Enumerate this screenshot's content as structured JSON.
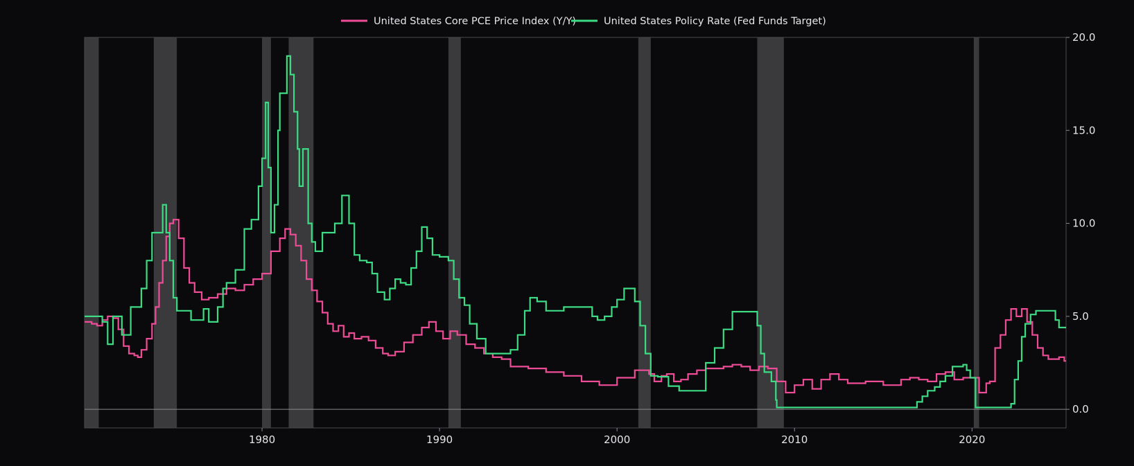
{
  "chart_data": {
    "type": "line",
    "title": "",
    "xlabel": "",
    "ylabel": "",
    "xlim": [
      1970.0,
      2025.3
    ],
    "ylim": [
      -1.0,
      20.0
    ],
    "x_ticks": [
      1980,
      1990,
      2000,
      2010,
      2020
    ],
    "x_tick_labels": [
      "1980",
      "1990",
      "2000",
      "2010",
      "2020"
    ],
    "y_ticks": [
      0,
      5,
      10,
      15,
      20
    ],
    "y_tick_labels": [
      "0.0",
      "5.0",
      "10.0",
      "15.0",
      "20.0"
    ],
    "grid": false,
    "legend_position": "top-center",
    "background_color": "#0a0a0c",
    "recession_color": "#3a3a3d",
    "recessions": [
      [
        1970.0,
        1970.8
      ],
      [
        1973.9,
        1975.2
      ],
      [
        1980.0,
        1980.5
      ],
      [
        1981.5,
        1982.9
      ],
      [
        1990.5,
        1991.2
      ],
      [
        2001.2,
        2001.9
      ],
      [
        2007.9,
        2009.4
      ],
      [
        2020.1,
        2020.4
      ]
    ],
    "series": [
      {
        "name": "United States Core PCE Price Index (Y/Y)",
        "color": "#ee4c97",
        "x": [
          1970.0,
          1970.4,
          1970.7,
          1971.0,
          1971.3,
          1971.6,
          1971.9,
          1972.2,
          1972.5,
          1972.8,
          1973.0,
          1973.2,
          1973.5,
          1973.8,
          1974.0,
          1974.2,
          1974.4,
          1974.6,
          1974.8,
          1975.0,
          1975.3,
          1975.6,
          1975.9,
          1976.2,
          1976.6,
          1977.0,
          1977.5,
          1978.0,
          1978.5,
          1979.0,
          1979.5,
          1980.0,
          1980.5,
          1981.0,
          1981.3,
          1981.6,
          1981.9,
          1982.2,
          1982.5,
          1982.8,
          1983.1,
          1983.4,
          1983.7,
          1984.0,
          1984.3,
          1984.6,
          1984.9,
          1985.2,
          1985.6,
          1986.0,
          1986.4,
          1986.8,
          1987.1,
          1987.5,
          1988.0,
          1988.5,
          1989.0,
          1989.4,
          1989.8,
          1990.2,
          1990.6,
          1991.0,
          1991.5,
          1992.0,
          1992.5,
          1993.0,
          1993.5,
          1994.0,
          1995.0,
          1996.0,
          1997.0,
          1998.0,
          1999.0,
          2000.0,
          2001.0,
          2001.8,
          2002.1,
          2002.5,
          2002.8,
          2003.2,
          2003.6,
          2004.0,
          2004.5,
          2005.0,
          2005.5,
          2006.0,
          2006.5,
          2007.0,
          2007.5,
          2008.0,
          2008.5,
          2009.0,
          2009.5,
          2010.0,
          2010.5,
          2011.0,
          2011.5,
          2012.0,
          2012.5,
          2013.0,
          2013.5,
          2014.0,
          2014.5,
          2015.0,
          2015.5,
          2016.0,
          2016.5,
          2017.0,
          2017.5,
          2018.0,
          2018.5,
          2019.0,
          2019.5,
          2020.0,
          2020.4,
          2020.8,
          2021.0,
          2021.3,
          2021.6,
          2021.9,
          2022.2,
          2022.5,
          2022.8,
          2023.1,
          2023.4,
          2023.7,
          2024.0,
          2024.3,
          2024.6,
          2024.9,
          2025.2
        ],
        "y": [
          4.7,
          4.6,
          4.5,
          4.8,
          5.0,
          4.9,
          4.3,
          3.4,
          3.0,
          2.9,
          2.8,
          3.2,
          3.8,
          4.6,
          5.5,
          6.8,
          8.0,
          9.3,
          10.0,
          10.2,
          9.2,
          7.6,
          6.8,
          6.3,
          5.9,
          6.0,
          6.2,
          6.5,
          6.4,
          6.7,
          7.0,
          7.3,
          8.5,
          9.2,
          9.7,
          9.4,
          8.8,
          8.0,
          7.0,
          6.4,
          5.8,
          5.2,
          4.6,
          4.2,
          4.5,
          3.9,
          4.1,
          3.8,
          3.9,
          3.7,
          3.3,
          3.0,
          2.9,
          3.1,
          3.6,
          4.0,
          4.4,
          4.7,
          4.2,
          3.8,
          4.2,
          4.0,
          3.5,
          3.3,
          3.0,
          2.8,
          2.7,
          2.3,
          2.2,
          2.0,
          1.8,
          1.5,
          1.3,
          1.7,
          2.1,
          1.9,
          1.5,
          1.8,
          1.9,
          1.5,
          1.6,
          1.9,
          2.1,
          2.2,
          2.2,
          2.3,
          2.4,
          2.3,
          2.1,
          2.3,
          2.2,
          1.5,
          0.9,
          1.3,
          1.6,
          1.1,
          1.6,
          1.9,
          1.6,
          1.4,
          1.4,
          1.5,
          1.5,
          1.3,
          1.3,
          1.6,
          1.7,
          1.6,
          1.5,
          1.9,
          2.0,
          1.6,
          1.7,
          1.7,
          0.9,
          1.4,
          1.5,
          3.3,
          4.0,
          4.8,
          5.4,
          5.0,
          5.4,
          4.7,
          4.0,
          3.3,
          2.9,
          2.7,
          2.7,
          2.8,
          2.6
        ]
      },
      {
        "name": "United States Policy Rate (Fed Funds Target)",
        "color": "#3ddc84",
        "x": [
          1970.0,
          1971.0,
          1971.3,
          1971.6,
          1972.1,
          1972.6,
          1972.9,
          1973.2,
          1973.5,
          1973.8,
          1974.0,
          1974.4,
          1974.6,
          1974.8,
          1975.0,
          1975.2,
          1975.5,
          1976.0,
          1976.7,
          1977.0,
          1977.5,
          1977.8,
          1978.0,
          1978.5,
          1979.0,
          1979.4,
          1979.8,
          1980.0,
          1980.2,
          1980.35,
          1980.5,
          1980.7,
          1980.9,
          1981.0,
          1981.2,
          1981.4,
          1981.6,
          1981.8,
          1982.0,
          1982.1,
          1982.3,
          1982.6,
          1982.8,
          1983.0,
          1983.4,
          1983.8,
          1984.1,
          1984.5,
          1984.9,
          1985.2,
          1985.5,
          1985.9,
          1986.2,
          1986.5,
          1986.9,
          1987.2,
          1987.5,
          1987.8,
          1988.1,
          1988.4,
          1988.7,
          1989.0,
          1989.3,
          1989.6,
          1990.0,
          1990.5,
          1990.8,
          1991.1,
          1991.4,
          1991.7,
          1992.1,
          1992.6,
          1993.0,
          1994.0,
          1994.4,
          1994.8,
          1995.1,
          1995.5,
          1996.0,
          1997.0,
          1998.0,
          1998.6,
          1998.9,
          1999.3,
          1999.7,
          2000.0,
          2000.4,
          2000.8,
          2001.0,
          2001.3,
          2001.6,
          2001.9,
          2002.3,
          2002.9,
          2003.5,
          2004.5,
          2005.0,
          2005.5,
          2006.0,
          2006.5,
          2007.6,
          2007.9,
          2008.1,
          2008.3,
          2008.7,
          2008.95,
          2009.0,
          2012.0,
          2015.9,
          2016.9,
          2017.2,
          2017.5,
          2017.9,
          2018.2,
          2018.5,
          2018.9,
          2019.5,
          2019.7,
          2019.9,
          2020.2,
          2021.0,
          2022.0,
          2022.2,
          2022.4,
          2022.6,
          2022.8,
          2023.0,
          2023.3,
          2023.6,
          2024.5,
          2024.7,
          2024.9,
          2025.3
        ],
        "y": [
          5.0,
          4.7,
          3.5,
          5.0,
          4.0,
          5.5,
          5.5,
          6.5,
          8.0,
          9.5,
          9.5,
          11.0,
          9.5,
          8.0,
          6.0,
          5.3,
          5.3,
          4.8,
          5.4,
          4.7,
          5.5,
          6.5,
          6.8,
          7.5,
          9.7,
          10.2,
          12.0,
          13.5,
          16.5,
          13.0,
          9.5,
          11.0,
          15.0,
          17.0,
          17.0,
          19.0,
          18.0,
          16.0,
          14.0,
          12.0,
          14.0,
          10.0,
          9.0,
          8.5,
          9.5,
          9.5,
          10.0,
          11.5,
          10.0,
          8.3,
          8.0,
          7.9,
          7.3,
          6.3,
          5.9,
          6.5,
          7.0,
          6.8,
          6.7,
          7.6,
          8.5,
          9.8,
          9.2,
          8.3,
          8.2,
          8.0,
          7.0,
          6.0,
          5.6,
          4.6,
          3.8,
          3.0,
          3.0,
          3.2,
          4.0,
          5.3,
          6.0,
          5.8,
          5.3,
          5.5,
          5.5,
          5.0,
          4.8,
          5.0,
          5.5,
          5.9,
          6.5,
          6.5,
          5.8,
          4.5,
          3.0,
          1.8,
          1.75,
          1.25,
          1.0,
          1.0,
          2.5,
          3.3,
          4.3,
          5.25,
          5.25,
          4.5,
          3.0,
          2.0,
          1.5,
          0.5,
          0.1,
          0.1,
          0.1,
          0.4,
          0.7,
          1.0,
          1.2,
          1.5,
          1.8,
          2.3,
          2.4,
          2.1,
          1.7,
          0.1,
          0.1,
          0.1,
          0.3,
          1.6,
          2.6,
          3.9,
          4.6,
          5.1,
          5.3,
          5.3,
          4.8,
          4.4,
          4.4
        ]
      }
    ]
  }
}
